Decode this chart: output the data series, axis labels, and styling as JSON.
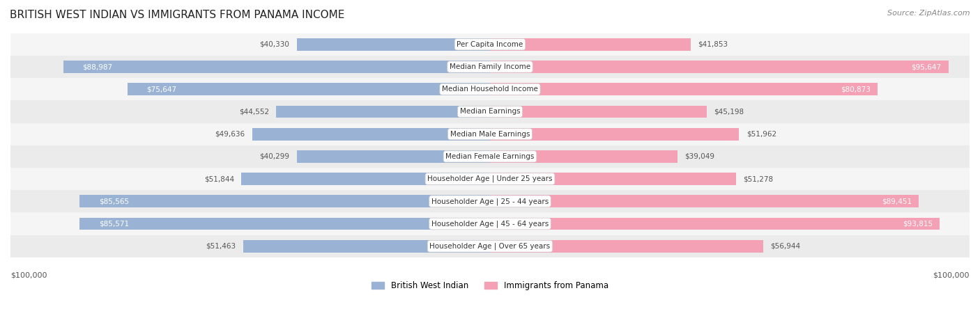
{
  "title": "BRITISH WEST INDIAN VS IMMIGRANTS FROM PANAMA INCOME",
  "source": "Source: ZipAtlas.com",
  "categories": [
    "Per Capita Income",
    "Median Family Income",
    "Median Household Income",
    "Median Earnings",
    "Median Male Earnings",
    "Median Female Earnings",
    "Householder Age | Under 25 years",
    "Householder Age | 25 - 44 years",
    "Householder Age | 45 - 64 years",
    "Householder Age | Over 65 years"
  ],
  "british_values": [
    40330,
    88987,
    75647,
    44552,
    49636,
    40299,
    51844,
    85565,
    85571,
    51463
  ],
  "panama_values": [
    41853,
    95647,
    80873,
    45198,
    51962,
    39049,
    51278,
    89451,
    93815,
    56944
  ],
  "british_labels": [
    "$40,330",
    "$88,987",
    "$75,647",
    "$44,552",
    "$49,636",
    "$40,299",
    "$51,844",
    "$85,565",
    "$85,571",
    "$51,463"
  ],
  "panama_labels": [
    "$41,853",
    "$95,647",
    "$80,873",
    "$45,198",
    "$51,962",
    "$39,049",
    "$51,278",
    "$89,451",
    "$93,815",
    "$56,944"
  ],
  "max_value": 100000,
  "british_color": "#9ab3d5",
  "panama_color": "#f4a0b5",
  "british_label_inside_color": "#ffffff",
  "panama_label_inside_color": "#ffffff",
  "british_label_outside_color": "#555555",
  "panama_label_outside_color": "#555555",
  "bar_height": 0.55,
  "row_bg_color_1": "#f5f5f5",
  "row_bg_color_2": "#ebebeb",
  "legend_british": "British West Indian",
  "legend_panama": "Immigrants from Panama",
  "british_inside_threshold": 60000,
  "panama_inside_threshold": 60000
}
